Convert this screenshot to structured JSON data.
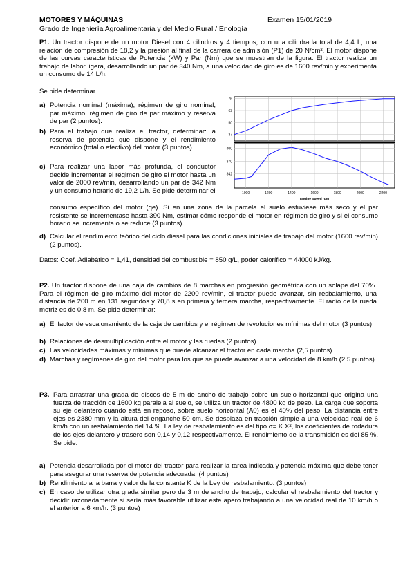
{
  "header": {
    "title": "MOTORES Y MÁQUINAS",
    "date": "Examen 15/01/2019",
    "subtitle": "Grado de Ingeniería Agroalimentaria y del Medio Rural / Enología"
  },
  "p1": {
    "num": "P1.",
    "intro": "Un tractor dispone de un motor Diesel con 4 cilindros y 4 tiempos, con una cilindrada total de 4,4 L, una relación de compresión de 18,2 y la presión al final de la carrera de admisión (P1) de 20 N/cm². El motor dispone de las curvas características de Potencia (kW) y Par (Nm) que se muestran de la figura. El tractor realiza un trabajo de labor ligera, desarrollando un par de 340 Nm, a una velocidad de giro es de 1600 rev/min y experimenta un consumo de 14 L/h.",
    "se_pide": "Se pide determinar",
    "items": [
      {
        "label": "a)",
        "text": "Potencia nominal (máxima), régimen de giro nominal, par máximo, régimen de giro de par máximo y reserva de par (2 puntos)."
      },
      {
        "label": "b)",
        "text": "Para el trabajo que realiza el tractor, determinar: la reserva de potencia que dispone y el rendimiento económico (total o efectivo) del motor (3 puntos)."
      },
      {
        "label": "c)",
        "text": "Para realizar una labor más profunda, el conductor decide incrementar el régimen de giro el motor hasta un valor de 2000 rev/min, desarrollando un par de 342 Nm y un consumo horario de 19,2 L/h. Se pide determinar el"
      },
      {
        "label": "",
        "text": "consumo específico del motor (qe). Si en una zona de la parcela el suelo estuviese más seco y el par resistente se incrementase hasta 390 Nm, estimar cómo responde el motor en régimen de giro y si el consumo horario se incrementa o se reduce (3 puntos)."
      },
      {
        "label": "d)",
        "text": "Calcular el rendimiento teórico del ciclo diesel para las condiciones iniciales de trabajo del motor (1600 rev/min) (2 puntos)."
      }
    ],
    "datos": "Datos: Coef. Adiabático = 1,41, densidad del combustible = 850 g/L, poder calorífico = 44000 kJ/kg."
  },
  "p2": {
    "num": "P2.",
    "intro": "Un tractor dispone de una caja de cambios de 8 marchas en progresión geométrica con un solape del 70%. Para el régimen de giro máximo del motor de 2200 rev/min, el tractor puede avanzar, sin resbalamiento, una distancia de 200 m en 131 segundos y 70,8 s en primera y tercera marcha, respectivamente. El radio de la rueda motriz es de 0,8 m. Se pide determinar:",
    "items": [
      {
        "label": "a)",
        "text": "El factor de escalonamiento de la caja de cambios y el régimen de revoluciones mínimas del motor (3 puntos)."
      },
      {
        "label": "b)",
        "text": "Relaciones de desmultiplicación entre el motor y las ruedas (2 puntos)."
      },
      {
        "label": "c)",
        "text": "Las velocidades máximas y mínimas que puede alcanzar el tractor en cada marcha (2,5 puntos)."
      },
      {
        "label": "d)",
        "text": "Marchas y regímenes de giro del motor para los que se puede avanzar a una velocidad de 8 km/h (2,5 puntos)."
      }
    ]
  },
  "p3": {
    "num": "P3.",
    "intro": "Para arrastrar una grada de discos de 5 m de ancho de trabajo sobre un suelo horizontal que origina una fuerza de tracción de 1600 kg paralela al suelo, se utiliza un tractor de 4800 kg de peso. La carga que soporta su eje delantero cuando está en reposo, sobre suelo horizontal (A0) es el 40% del peso. La distancia entre ejes es 2380 mm y la altura del enganche 50 cm. Se desplaza en tracción simple a una velocidad real de 6 km/h con un resbalamiento del 14 %. La ley de resbalamiento es del tipo σ= K X², los coeficientes de rodadura de los ejes delantero y trasero son 0,14 y 0,12 respectivamente. El rendimiento de la transmisión es del 85 %. Se pide:",
    "items": [
      {
        "label": "a)",
        "text": "Potencia desarrollada por el motor del tractor para realizar la tarea indicada y potencia máxima que debe tener para asegurar una reserva de potencia adecuada. (4 puntos)"
      },
      {
        "label": "b)",
        "text": "Rendimiento a la barra y valor de la constante K de la Ley de resbalamiento. (3 puntos)"
      },
      {
        "label": "c)",
        "text": "En caso de utilizar otra grada similar pero de 3 m de ancho de trabajo, calcular el resbalamiento del tractor y decidir razonadamente si sería más favorable utilizar este apero trabajando a una velocidad real de 10 km/h o el anterior a 6 km/h. (3 puntos)"
      }
    ]
  },
  "chart_data": {
    "type": "line",
    "xlabel": "Engine Speed rpm",
    "x_ticks": [
      1000,
      1200,
      1400,
      1600,
      1800,
      2000,
      2200
    ],
    "power": {
      "y_ticks": [
        37,
        50,
        63,
        76
      ],
      "x": [
        900,
        1000,
        1100,
        1200,
        1300,
        1400,
        1500,
        1600,
        1700,
        1800,
        1900,
        2000,
        2100,
        2200,
        2300
      ],
      "y": [
        37,
        41,
        47,
        53,
        58,
        63,
        66,
        68,
        70,
        71.5,
        73,
        74,
        75,
        76,
        76
      ]
    },
    "torque": {
      "y_ticks": [
        342,
        370,
        400
      ],
      "x": [
        900,
        1000,
        1050,
        1100,
        1200,
        1300,
        1400,
        1500,
        1600,
        1700,
        1800,
        1900,
        2000,
        2100,
        2200,
        2250
      ],
      "y": [
        330,
        332,
        336,
        352,
        385,
        398,
        402,
        396,
        387,
        377,
        370,
        360,
        348,
        334,
        322,
        317
      ]
    }
  }
}
